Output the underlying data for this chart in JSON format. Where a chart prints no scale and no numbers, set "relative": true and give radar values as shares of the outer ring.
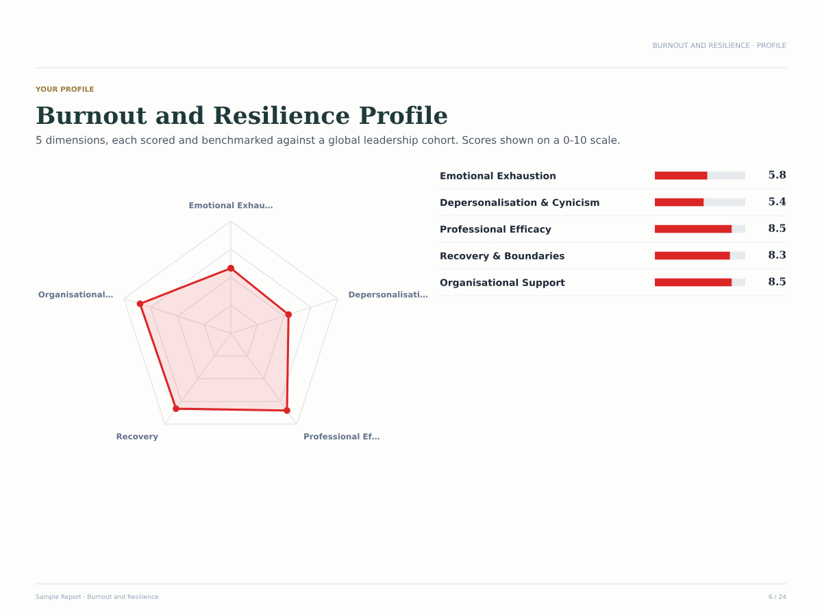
{
  "chart_data": [
    {
      "type": "radar",
      "title": "Burnout and Resilience Profile",
      "subtitle": "5 dimensions, each scored and benchmarked against a global leadership cohort. Scores shown on a 0-10 scale.",
      "annotations": [
        "YOUR PROFILE",
        "BURNOUT AND RESILIENCE · PROFILE",
        "Sample Report · Burnout and Resilience",
        "6 / 24"
      ],
      "categories": [
        "Emotional Exhau…",
        "Depersonalisati…",
        "Professional Ef…",
        "Recovery",
        "Organisational…"
      ],
      "relative": true,
      "grid": true,
      "marker": "circle",
      "series": [
        {
          "color": "#dc2626",
          "values": [
            0.58,
            0.54,
            0.85,
            0.83,
            0.85
          ]
        }
      ]
    },
    {
      "type": "bar",
      "orientation": "horizontal",
      "tick_labels": "y",
      "data_labels": true,
      "xlim": [
        0,
        10
      ],
      "categories": [
        "Emotional Exhaustion",
        "Depersonalisation & Cynicism",
        "Professional Efficacy",
        "Recovery & Boundaries",
        "Organisational Support"
      ],
      "series": [
        {
          "color": "#dc2626",
          "values": [
            5.8,
            5.4,
            8.5,
            8.3,
            8.5
          ]
        }
      ]
    }
  ]
}
